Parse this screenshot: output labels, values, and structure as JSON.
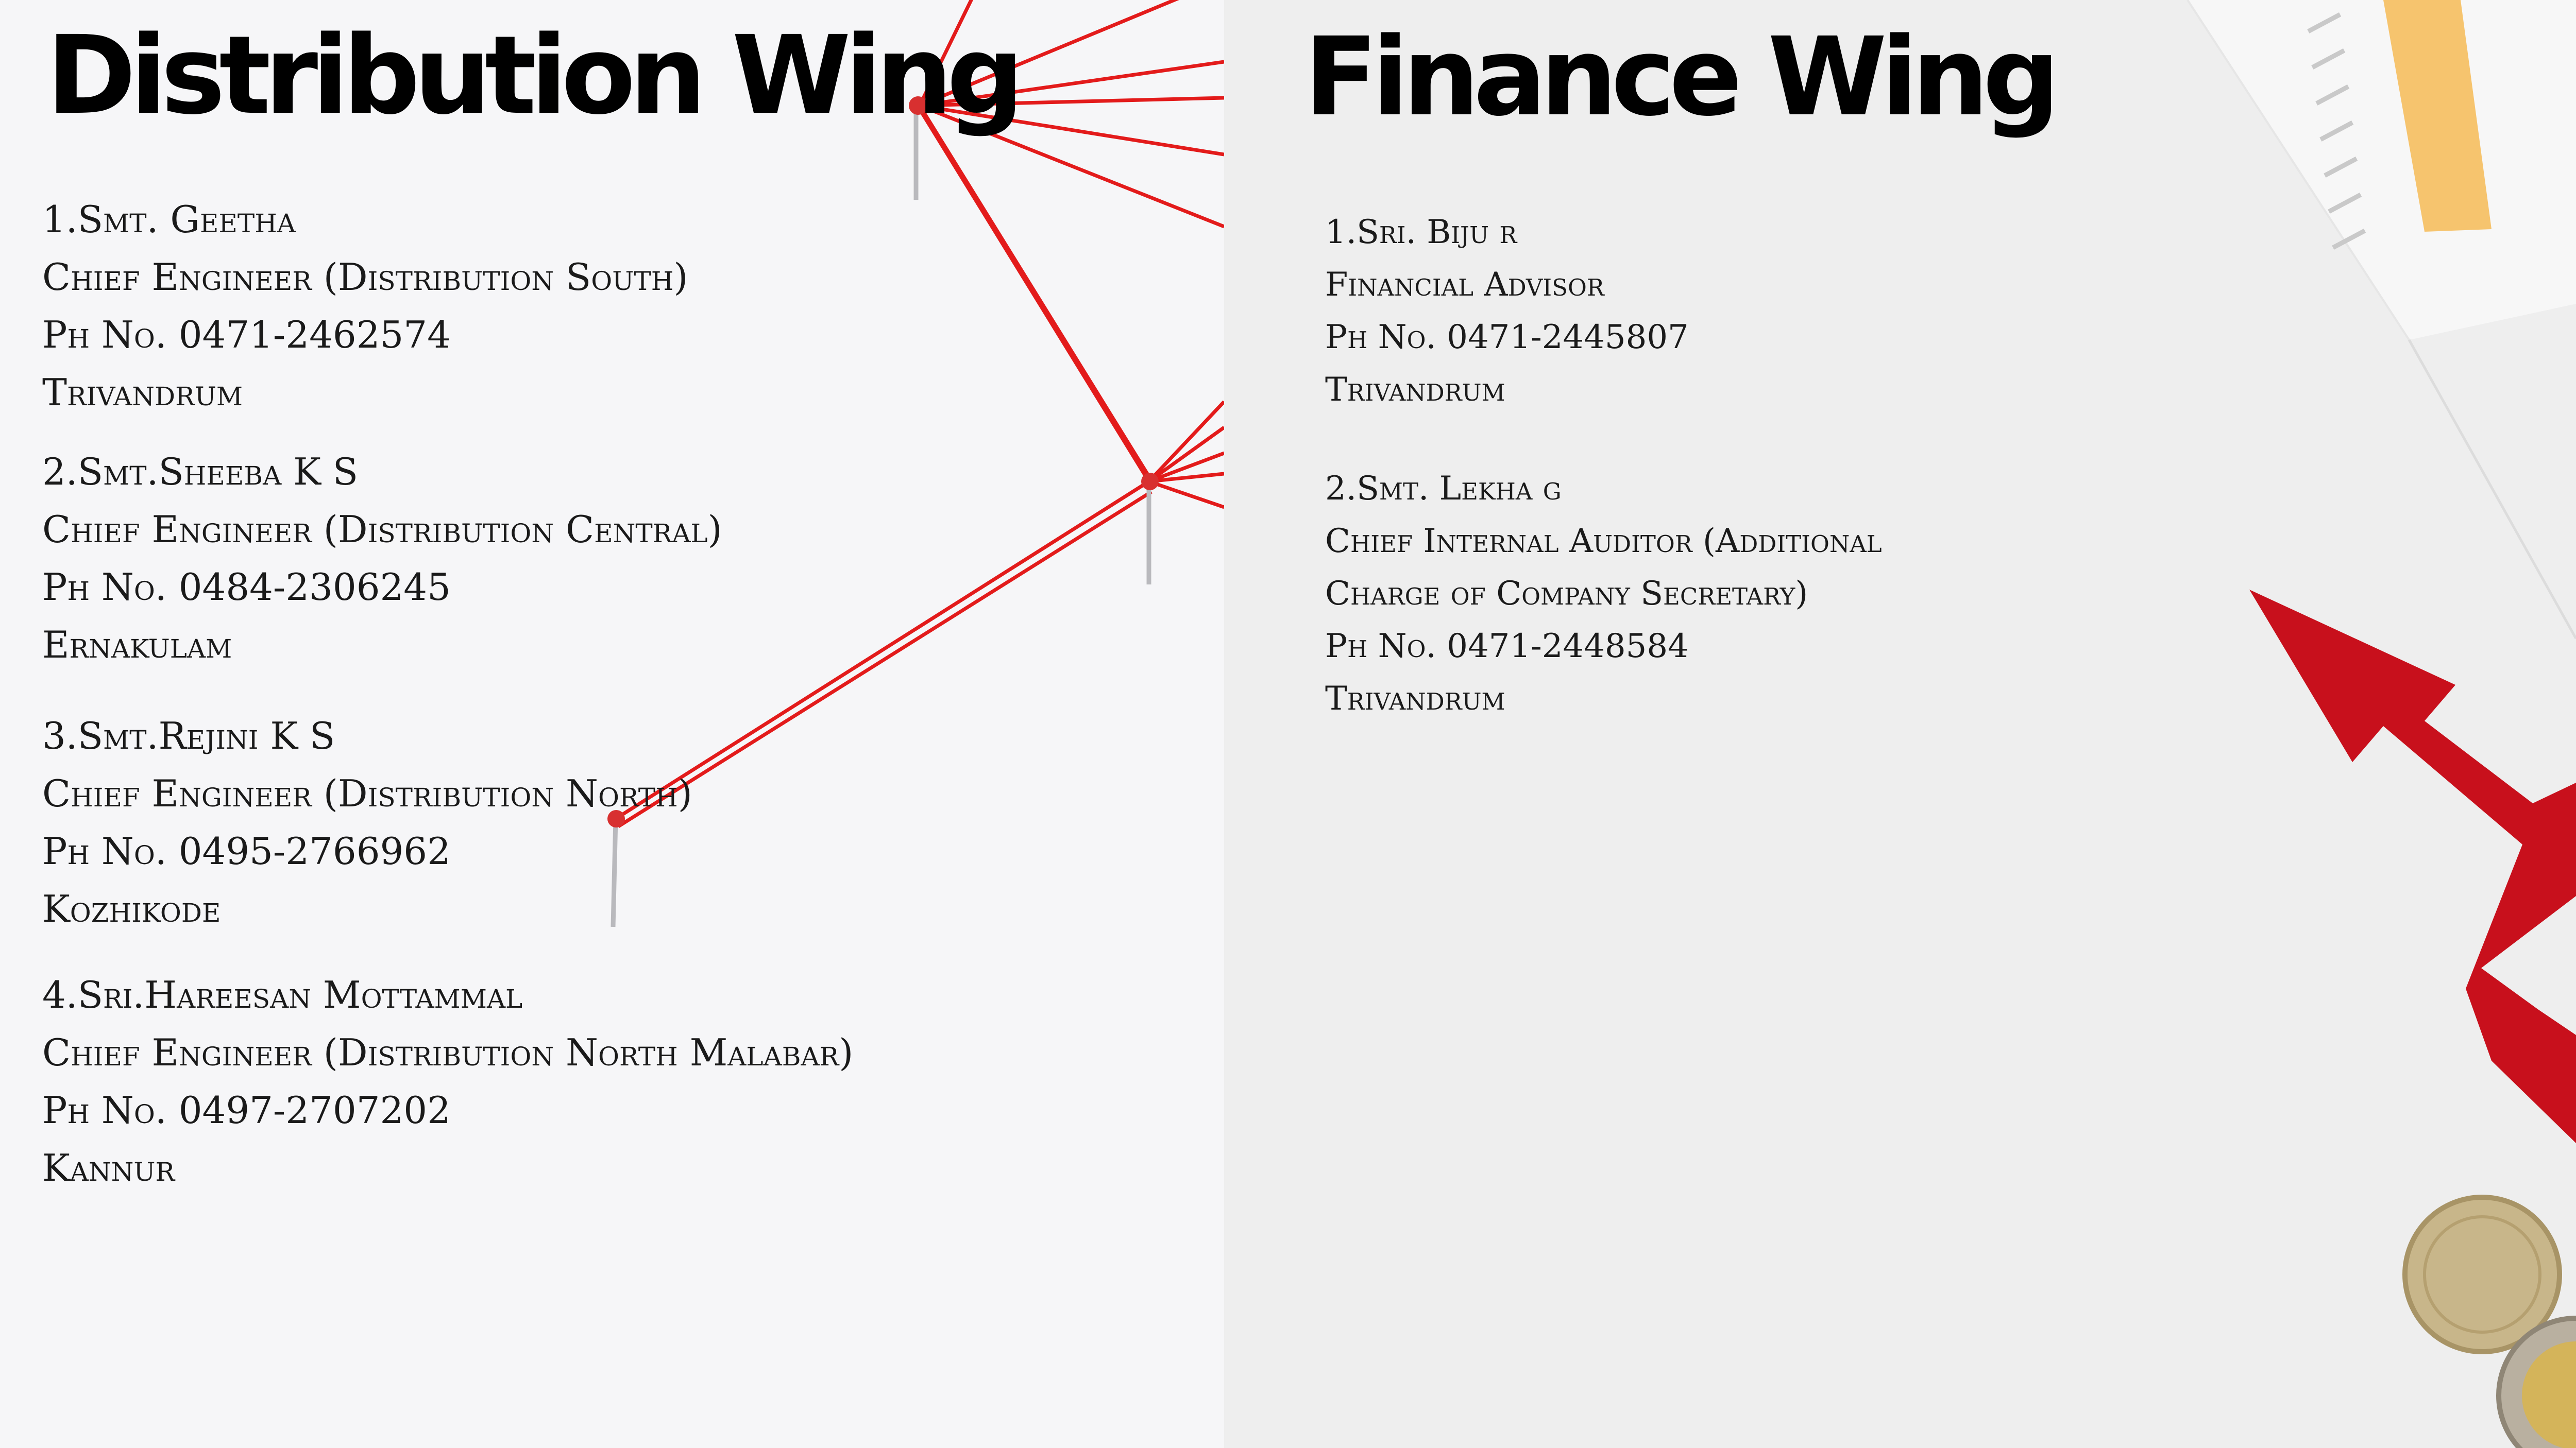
{
  "distribution": {
    "title": "Distribution Wing",
    "contacts": [
      {
        "name": "1.Smt. Geetha",
        "designation": "Chief Engineer (Distribution South)",
        "phone": "Ph No. 0471-2462574",
        "location": "Trivandrum"
      },
      {
        "name": "2.Smt.Sheeba K S",
        "designation": "Chief Engineer (Distribution Central)",
        "phone": "Ph No. 0484-2306245",
        "location": "Ernakulam"
      },
      {
        "name": "3.Smt.Rejini K S",
        "designation": "Chief Engineer (Distribution North)",
        "phone": "Ph No. 0495-2766962",
        "location": "Kozhikode"
      },
      {
        "name": "4.Sri.Hareesan Mottammal",
        "designation": "Chief Engineer (Distribution North Malabar)",
        "phone": "Ph No. 0497-2707202",
        "location": "Kannur"
      }
    ]
  },
  "finance": {
    "title": "Finance Wing",
    "contacts": [
      {
        "name": "1.Sri. Biju r",
        "designation": "Financial Advisor",
        "phone": "Ph No. 0471-2445807",
        "location": "Trivandrum"
      },
      {
        "name": "2.Smt. Lekha g",
        "designation_line1": "Chief Internal Auditor (Additional",
        "designation_line2": "Charge of Company Secretary)",
        "phone": "Ph No. 0471-2448584",
        "location": "Trivandrum"
      }
    ]
  },
  "colors": {
    "thread": "#e31b1b",
    "arrow": "#c8101c",
    "chart_bar": "#f6c46e",
    "coin": "#c8b68a"
  }
}
